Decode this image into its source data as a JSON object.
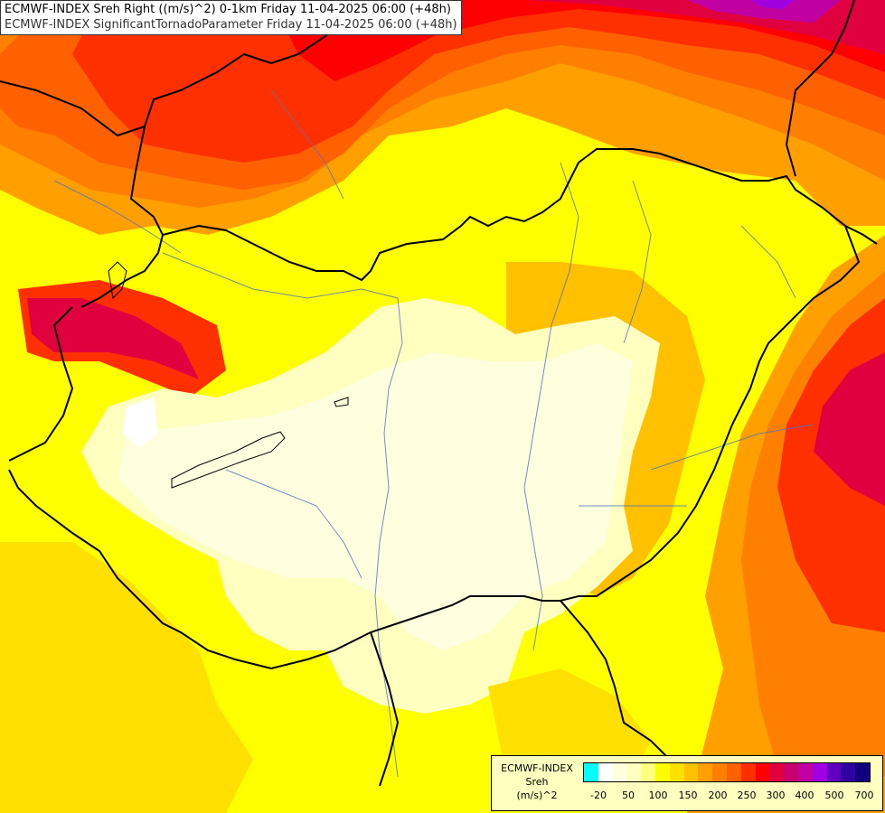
{
  "header": {
    "line1": "ECMWF-INDEX Sreh Right ((m/s)^2) 0-1km Friday 11-04-2025 06:00 (+48h)",
    "line2": "ECMWF-INDEX SignificantTornadoParameter Friday 11-04-2025 06:00 (+48h)"
  },
  "legend": {
    "model": "ECMWF-INDEX",
    "variable": "Sreh",
    "unit": "(m/s)^2",
    "colors": [
      "#00ffff",
      "#ffffff",
      "#ffffe0",
      "#ffffc0",
      "#ffff80",
      "#ffff00",
      "#ffe000",
      "#ffc000",
      "#ffa000",
      "#ff8000",
      "#ff6000",
      "#ff3000",
      "#ff0000",
      "#e00040",
      "#c80070",
      "#c000a0",
      "#a000e0",
      "#6000c0",
      "#3000a0",
      "#100080"
    ],
    "ticks": [
      "-20",
      "50",
      "100",
      "150",
      "200",
      "250",
      "300",
      "400",
      "500",
      "700"
    ]
  }
}
